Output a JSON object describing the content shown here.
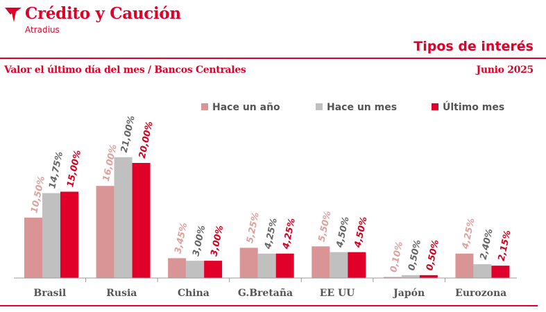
{
  "header": {
    "brand": "Crédito y Caución",
    "sub_brand": "Atradius",
    "title": "Tipos de interés",
    "subtitle": "Valor el último día del mes / Bancos Centrales",
    "date": "Junio 2025"
  },
  "colors": {
    "accent": "#e1002a",
    "series": [
      "#d99595",
      "#c0c0c0",
      "#e1002a"
    ],
    "labels": [
      "#e0a0a0",
      "#666666",
      "#d4001f"
    ],
    "axis_text": "#555555"
  },
  "chart_data": {
    "type": "bar",
    "categories": [
      "Brasil",
      "Rusia",
      "China",
      "G.Bretaña",
      "EE UU",
      "Japón",
      "Eurozona"
    ],
    "series": [
      {
        "name": "Hace un año",
        "values": [
          10.5,
          16.0,
          3.45,
          5.25,
          5.5,
          0.1,
          4.25
        ],
        "labels": [
          "10,50%",
          "16,00%",
          "3,45%",
          "5,25%",
          "5,50%",
          "0,10%",
          "4,25%"
        ]
      },
      {
        "name": "Hace un mes",
        "values": [
          14.75,
          21.0,
          3.0,
          4.25,
          4.5,
          0.5,
          2.4
        ],
        "labels": [
          "14,75%",
          "21,00%",
          "3,00%",
          "4,25%",
          "4,50%",
          "0,50%",
          "2,40%"
        ]
      },
      {
        "name": "Último mes",
        "values": [
          15.0,
          20.0,
          3.0,
          4.25,
          4.5,
          0.5,
          2.15
        ],
        "labels": [
          "15,00%",
          "20,00%",
          "3,00%",
          "4,25%",
          "4,50%",
          "0,50%",
          "2,15%"
        ]
      }
    ],
    "ylim": [
      0,
      21
    ],
    "legend_position": "top-right",
    "grid": false
  }
}
